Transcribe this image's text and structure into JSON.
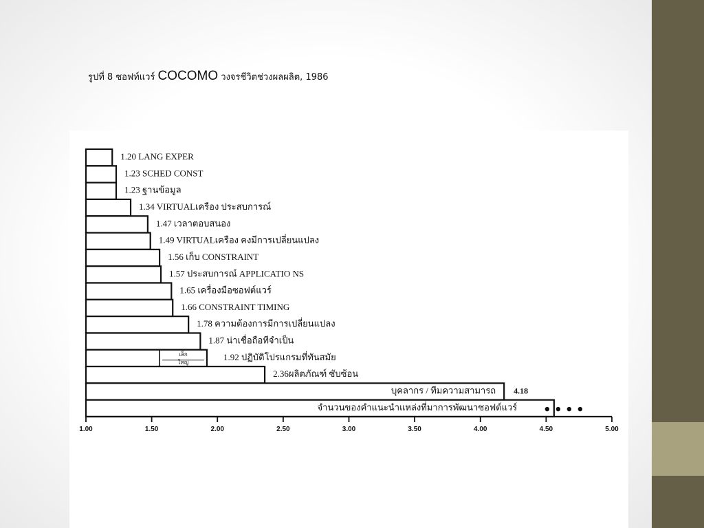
{
  "slide": {
    "title_prefix": "รูปที่ 8 ซอฟท์แวร์ ",
    "title_highlight": "COCOMO",
    "title_suffix": " วงจรชีวิตช่วงผลผลิต, 1986"
  },
  "colors": {
    "side_bar": "#655f48",
    "side_accent": "#a8a27e",
    "bar_stroke": "#111111",
    "bar_fill": "#ffffff"
  },
  "chart_data": {
    "type": "bar",
    "orientation": "horizontal",
    "title": "",
    "xlabel": "",
    "ylabel": "",
    "xlim": [
      1.0,
      5.0
    ],
    "x_ticks": [
      "1.00",
      "1.50",
      "2.00",
      "2.50",
      "3.00",
      "3.50",
      "4.00",
      "4.50",
      "5.00"
    ],
    "grid": false,
    "categories": [
      "1.20 LANG EXPER",
      "1.23 SCHED CONST",
      "1.23 ฐานข้อมูล",
      "1.34 VIRTUALเครือง ประสบการณ์",
      "1.47 เวลาตอบสนอง",
      "1.49 VIRTUALเครือง คงมีการเปลี่ยนแปลง",
      "1.56 เก็บ CONSTRAINT",
      "1.57 ประสบการณ์ APPLICATIO NS",
      "1.65 เครื่องมือซอฟต์แวร์",
      "1.66 CONSTRAINT TIMING",
      "1.78 ความต้องการมีการเปลี่ยนแปลง",
      "1.87 น่าเชื่อถือทีจำเป็น",
      "1.92 ปฏิบัติโปรแกรมที่ทันสมัย",
      "2.36ผลิตภัณฑ์ ซับซ้อน",
      "บุคลากร / ทีมความสามารถ",
      "จำนวนของคำแนะนำแหล่งที่มาการพัฒนาซอฟต์แวร์"
    ],
    "values": [
      1.2,
      1.23,
      1.23,
      1.34,
      1.47,
      1.49,
      1.56,
      1.57,
      1.65,
      1.66,
      1.78,
      1.87,
      1.92,
      2.36,
      4.18,
      4.56
    ],
    "value_label_right": {
      "index": 14,
      "text": "4.18"
    },
    "inset_box": {
      "index": 12,
      "line1": "เล็ก",
      "line2": "ใหญ่",
      "x_range": [
        1.56,
        1.92
      ]
    },
    "ellipsis_dots": {
      "index": 15,
      "count": 4
    }
  }
}
